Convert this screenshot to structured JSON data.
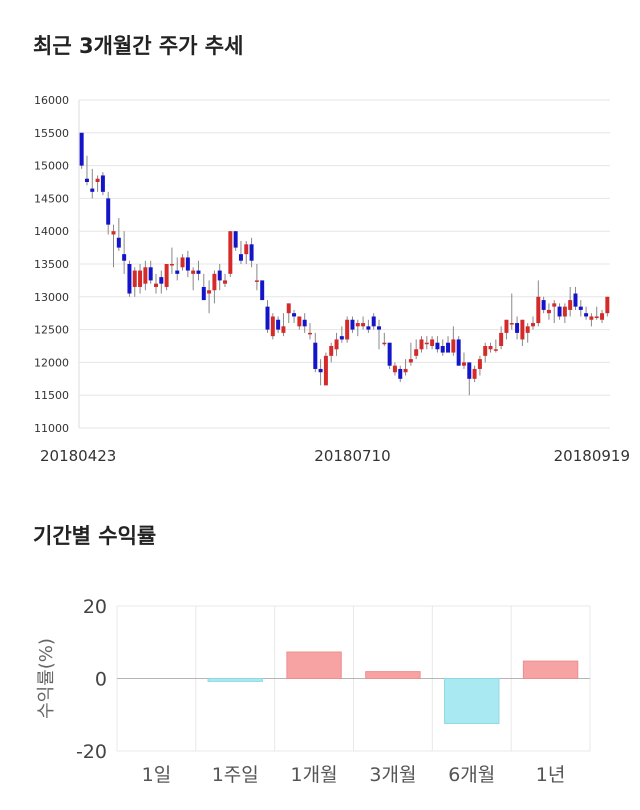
{
  "sections": {
    "price_title": "최근 3개월간 주가 추세",
    "return_title": "기간별 수익률"
  },
  "colors": {
    "up": "#d42a2a",
    "down": "#1414c8",
    "positive_bar": "#f8a3a3",
    "negative_bar": "#a9e9f1",
    "grid": "#e6e6e6"
  },
  "chart_data": [
    {
      "type": "candlestick",
      "y_ticks": [
        "16000",
        "15500",
        "15000",
        "14500",
        "14000",
        "13500",
        "13000",
        "12500",
        "12000",
        "11500",
        "11000"
      ],
      "ylim": [
        11000,
        16000
      ],
      "x_labels": [
        {
          "index": 0,
          "text": "20180423"
        },
        {
          "index": 51,
          "text": "20180710"
        },
        {
          "index": 101,
          "text": "20180919"
        }
      ],
      "candles": [
        {
          "o": 15500,
          "h": 15500,
          "l": 14950,
          "c": 15000
        },
        {
          "o": 14800,
          "h": 15150,
          "l": 14700,
          "c": 14750
        },
        {
          "o": 14650,
          "h": 14950,
          "l": 14500,
          "c": 14600
        },
        {
          "o": 14750,
          "h": 14850,
          "l": 14600,
          "c": 14800
        },
        {
          "o": 14850,
          "h": 14900,
          "l": 14550,
          "c": 14600
        },
        {
          "o": 14500,
          "h": 14600,
          "l": 13950,
          "c": 14100
        },
        {
          "o": 13950,
          "h": 14100,
          "l": 13450,
          "c": 14000
        },
        {
          "o": 13900,
          "h": 14200,
          "l": 13700,
          "c": 13750
        },
        {
          "o": 13650,
          "h": 14000,
          "l": 13350,
          "c": 13550
        },
        {
          "o": 13500,
          "h": 13550,
          "l": 13000,
          "c": 13050
        },
        {
          "o": 13150,
          "h": 13450,
          "l": 13000,
          "c": 13400
        },
        {
          "o": 13150,
          "h": 13500,
          "l": 13050,
          "c": 13400
        },
        {
          "o": 13200,
          "h": 13550,
          "l": 13100,
          "c": 13450
        },
        {
          "o": 13450,
          "h": 13550,
          "l": 13200,
          "c": 13250
        },
        {
          "o": 13150,
          "h": 13350,
          "l": 13050,
          "c": 13200
        },
        {
          "o": 13300,
          "h": 13400,
          "l": 13050,
          "c": 13200
        },
        {
          "o": 13150,
          "h": 13500,
          "l": 13100,
          "c": 13500
        },
        {
          "o": 13500,
          "h": 13750,
          "l": 13350,
          "c": 13500
        },
        {
          "o": 13400,
          "h": 13600,
          "l": 13250,
          "c": 13350
        },
        {
          "o": 13450,
          "h": 13650,
          "l": 13400,
          "c": 13600
        },
        {
          "o": 13600,
          "h": 13700,
          "l": 13300,
          "c": 13400
        },
        {
          "o": 13350,
          "h": 13450,
          "l": 13100,
          "c": 13400
        },
        {
          "o": 13400,
          "h": 13550,
          "l": 13250,
          "c": 13350
        },
        {
          "o": 13150,
          "h": 13350,
          "l": 12950,
          "c": 12950
        },
        {
          "o": 13050,
          "h": 13250,
          "l": 12750,
          "c": 13100
        },
        {
          "o": 13100,
          "h": 13400,
          "l": 12900,
          "c": 13350
        },
        {
          "o": 13400,
          "h": 13500,
          "l": 13100,
          "c": 13250
        },
        {
          "o": 13200,
          "h": 13350,
          "l": 13150,
          "c": 13250
        },
        {
          "o": 13350,
          "h": 14000,
          "l": 13300,
          "c": 14000
        },
        {
          "o": 14000,
          "h": 14000,
          "l": 13700,
          "c": 13750
        },
        {
          "o": 13650,
          "h": 13850,
          "l": 13500,
          "c": 13550
        },
        {
          "o": 13650,
          "h": 13850,
          "l": 13500,
          "c": 13800
        },
        {
          "o": 13800,
          "h": 13900,
          "l": 13450,
          "c": 13550
        },
        {
          "o": 13250,
          "h": 13500,
          "l": 13100,
          "c": 13250
        },
        {
          "o": 13250,
          "h": 13250,
          "l": 12950,
          "c": 12950
        },
        {
          "o": 12850,
          "h": 12950,
          "l": 12450,
          "c": 12500
        },
        {
          "o": 12400,
          "h": 12750,
          "l": 12350,
          "c": 12700
        },
        {
          "o": 12650,
          "h": 12700,
          "l": 12450,
          "c": 12500
        },
        {
          "o": 12450,
          "h": 12750,
          "l": 12400,
          "c": 12550
        },
        {
          "o": 12750,
          "h": 12900,
          "l": 12600,
          "c": 12900
        },
        {
          "o": 12750,
          "h": 12800,
          "l": 12600,
          "c": 12700
        },
        {
          "o": 12550,
          "h": 12700,
          "l": 12500,
          "c": 12700
        },
        {
          "o": 12650,
          "h": 12750,
          "l": 12450,
          "c": 12550
        },
        {
          "o": 12450,
          "h": 12600,
          "l": 12350,
          "c": 12450
        },
        {
          "o": 12300,
          "h": 12450,
          "l": 11850,
          "c": 11900
        },
        {
          "o": 11900,
          "h": 12050,
          "l": 11650,
          "c": 11850
        },
        {
          "o": 11650,
          "h": 12150,
          "l": 11650,
          "c": 12100
        },
        {
          "o": 12100,
          "h": 12300,
          "l": 12000,
          "c": 12250
        },
        {
          "o": 12200,
          "h": 12450,
          "l": 12100,
          "c": 12350
        },
        {
          "o": 12400,
          "h": 12550,
          "l": 12300,
          "c": 12350
        },
        {
          "o": 12350,
          "h": 12700,
          "l": 12300,
          "c": 12650
        },
        {
          "o": 12650,
          "h": 12700,
          "l": 12450,
          "c": 12500
        },
        {
          "o": 12550,
          "h": 12650,
          "l": 12400,
          "c": 12600
        },
        {
          "o": 12550,
          "h": 12700,
          "l": 12500,
          "c": 12600
        },
        {
          "o": 12550,
          "h": 12650,
          "l": 12450,
          "c": 12500
        },
        {
          "o": 12700,
          "h": 12750,
          "l": 12500,
          "c": 12550
        },
        {
          "o": 12550,
          "h": 12650,
          "l": 12200,
          "c": 12500
        },
        {
          "o": 12300,
          "h": 12450,
          "l": 12250,
          "c": 12300
        },
        {
          "o": 12300,
          "h": 12300,
          "l": 11900,
          "c": 11950
        },
        {
          "o": 11850,
          "h": 12000,
          "l": 11800,
          "c": 11950
        },
        {
          "o": 11900,
          "h": 11950,
          "l": 11700,
          "c": 11750
        },
        {
          "o": 11850,
          "h": 12050,
          "l": 11800,
          "c": 11900
        },
        {
          "o": 12000,
          "h": 12300,
          "l": 11950,
          "c": 12050
        },
        {
          "o": 12100,
          "h": 12350,
          "l": 12050,
          "c": 12200
        },
        {
          "o": 12200,
          "h": 12400,
          "l": 12150,
          "c": 12350
        },
        {
          "o": 12300,
          "h": 12400,
          "l": 12200,
          "c": 12300
        },
        {
          "o": 12250,
          "h": 12400,
          "l": 12200,
          "c": 12350
        },
        {
          "o": 12300,
          "h": 12400,
          "l": 12150,
          "c": 12200
        },
        {
          "o": 12250,
          "h": 12350,
          "l": 12100,
          "c": 12150
        },
        {
          "o": 12300,
          "h": 12400,
          "l": 12150,
          "c": 12150
        },
        {
          "o": 12150,
          "h": 12550,
          "l": 12100,
          "c": 12350
        },
        {
          "o": 12350,
          "h": 12400,
          "l": 11950,
          "c": 11950
        },
        {
          "o": 11950,
          "h": 12150,
          "l": 11900,
          "c": 12000
        },
        {
          "o": 12000,
          "h": 12000,
          "l": 11500,
          "c": 11750
        },
        {
          "o": 11750,
          "h": 11950,
          "l": 11700,
          "c": 11900
        },
        {
          "o": 11900,
          "h": 12100,
          "l": 11800,
          "c": 12050
        },
        {
          "o": 12100,
          "h": 12300,
          "l": 12000,
          "c": 12250
        },
        {
          "o": 12200,
          "h": 12300,
          "l": 12150,
          "c": 12250
        },
        {
          "o": 12200,
          "h": 12350,
          "l": 12150,
          "c": 12200
        },
        {
          "o": 12250,
          "h": 12550,
          "l": 12200,
          "c": 12450
        },
        {
          "o": 12450,
          "h": 12650,
          "l": 12350,
          "c": 12650
        },
        {
          "o": 12600,
          "h": 13050,
          "l": 12500,
          "c": 12600
        },
        {
          "o": 12600,
          "h": 12700,
          "l": 12350,
          "c": 12450
        },
        {
          "o": 12350,
          "h": 12650,
          "l": 12250,
          "c": 12650
        },
        {
          "o": 12450,
          "h": 12600,
          "l": 12300,
          "c": 12550
        },
        {
          "o": 12550,
          "h": 12700,
          "l": 12500,
          "c": 12600
        },
        {
          "o": 12600,
          "h": 13250,
          "l": 12550,
          "c": 13000
        },
        {
          "o": 12950,
          "h": 13000,
          "l": 12750,
          "c": 12800
        },
        {
          "o": 12750,
          "h": 12900,
          "l": 12650,
          "c": 12800
        },
        {
          "o": 12850,
          "h": 12950,
          "l": 12600,
          "c": 12900
        },
        {
          "o": 12850,
          "h": 12900,
          "l": 12650,
          "c": 12700
        },
        {
          "o": 12700,
          "h": 12900,
          "l": 12600,
          "c": 12850
        },
        {
          "o": 12800,
          "h": 13150,
          "l": 12700,
          "c": 12950
        },
        {
          "o": 13050,
          "h": 13150,
          "l": 12800,
          "c": 12850
        },
        {
          "o": 12850,
          "h": 12950,
          "l": 12700,
          "c": 12800
        },
        {
          "o": 12750,
          "h": 12850,
          "l": 12650,
          "c": 12700
        },
        {
          "o": 12650,
          "h": 12750,
          "l": 12550,
          "c": 12700
        },
        {
          "o": 12700,
          "h": 12850,
          "l": 12650,
          "c": 12700
        },
        {
          "o": 12650,
          "h": 12800,
          "l": 12600,
          "c": 12750
        },
        {
          "o": 12750,
          "h": 13000,
          "l": 12700,
          "c": 13000
        }
      ]
    },
    {
      "type": "bar",
      "categories": [
        "1일",
        "1주일",
        "1개월",
        "3개월",
        "6개월",
        "1년"
      ],
      "values": [
        0,
        -0.8,
        7.3,
        1.9,
        -12.4,
        4.8
      ],
      "ylabel": "수익률(%)",
      "y_ticks": [
        "20",
        "0",
        "-20"
      ],
      "ylim": [
        -20,
        20
      ]
    }
  ]
}
